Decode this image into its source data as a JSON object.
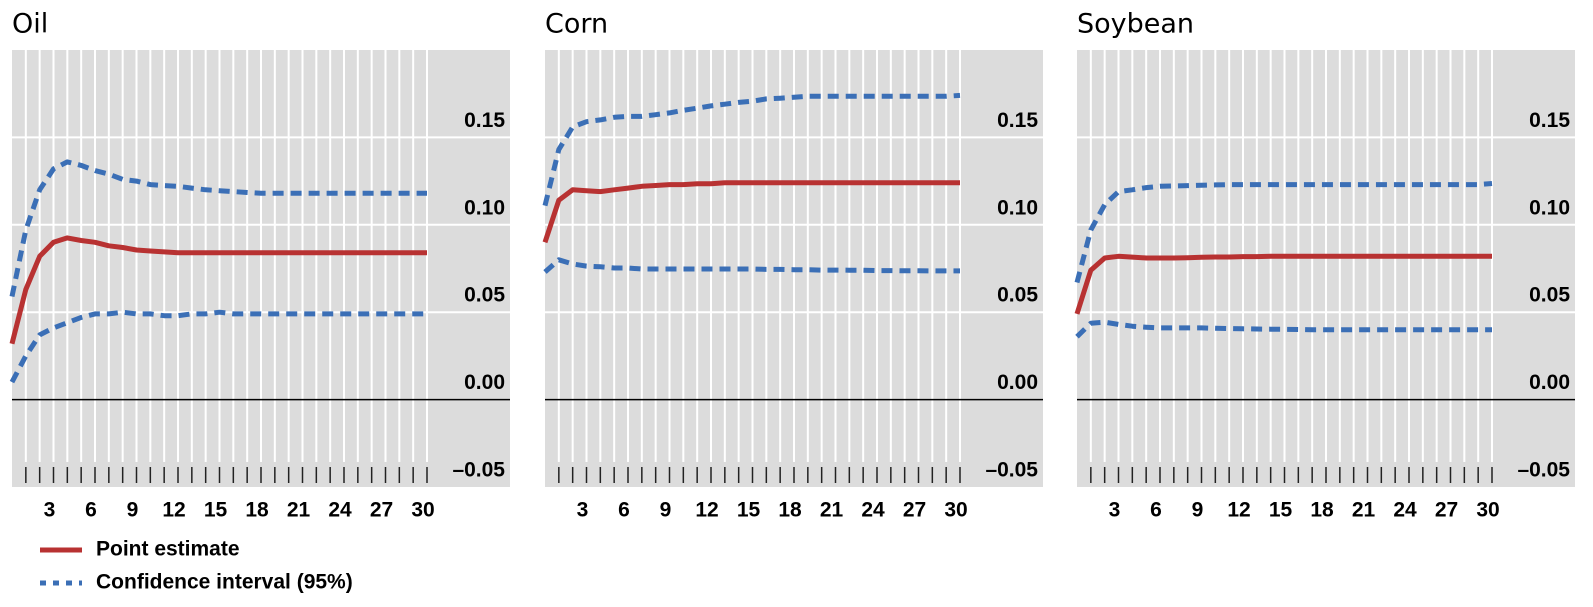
{
  "chart_data": [
    {
      "type": "line",
      "title": "Oil",
      "x": [
        0,
        1,
        2,
        3,
        4,
        5,
        6,
        7,
        8,
        9,
        10,
        11,
        12,
        13,
        14,
        15,
        16,
        17,
        18,
        19,
        20,
        21,
        22,
        23,
        24,
        25,
        26,
        27,
        28,
        29,
        30
      ],
      "series": [
        {
          "name": "Point estimate",
          "color": "#b83232",
          "values": [
            0.032,
            0.063,
            0.082,
            0.09,
            0.0925,
            0.091,
            0.09,
            0.088,
            0.087,
            0.0856,
            0.085,
            0.0845,
            0.084,
            0.084,
            0.084,
            0.084,
            0.084,
            0.084,
            0.084,
            0.084,
            0.084,
            0.084,
            0.084,
            0.084,
            0.084,
            0.084,
            0.084,
            0.084,
            0.084,
            0.084,
            0.084
          ]
        },
        {
          "name": "Confidence interval (95%)",
          "color": "#3b6fb6",
          "dashed": true,
          "upper": [
            0.059,
            0.097,
            0.12,
            0.132,
            0.136,
            0.134,
            0.131,
            0.129,
            0.126,
            0.125,
            0.123,
            0.1224,
            0.122,
            0.121,
            0.12,
            0.1195,
            0.119,
            0.1185,
            0.118,
            0.118,
            0.118,
            0.118,
            0.118,
            0.118,
            0.118,
            0.118,
            0.118,
            0.118,
            0.118,
            0.118,
            0.118
          ],
          "lower": [
            0.01,
            0.025,
            0.037,
            0.041,
            0.044,
            0.047,
            0.049,
            0.049,
            0.05,
            0.049,
            0.049,
            0.048,
            0.048,
            0.049,
            0.049,
            0.05,
            0.049,
            0.049,
            0.049,
            0.049,
            0.049,
            0.049,
            0.049,
            0.049,
            0.049,
            0.049,
            0.049,
            0.049,
            0.049,
            0.049,
            0.049
          ]
        }
      ],
      "xlim": [
        0,
        36
      ],
      "xticks": [
        3,
        6,
        9,
        12,
        15,
        18,
        21,
        24,
        27,
        30
      ],
      "xminorticks": [
        1,
        2,
        3,
        4,
        5,
        6,
        7,
        8,
        9,
        10,
        11,
        12,
        13,
        14,
        15,
        16,
        17,
        18,
        19,
        20,
        21,
        22,
        23,
        24,
        25,
        26,
        27,
        28,
        29,
        30
      ],
      "ylim": [
        -0.05,
        0.2
      ],
      "yticks": [
        {
          "value": -0.05,
          "label": "–0.05"
        },
        {
          "value": 0,
          "label": "0.00"
        },
        0.05,
        {
          "value": 0.1,
          "label": "0.10"
        },
        0.15
      ],
      "grid": true
    },
    {
      "type": "line",
      "title": "Corn",
      "x": [
        0,
        1,
        2,
        3,
        4,
        5,
        6,
        7,
        8,
        9,
        10,
        11,
        12,
        13,
        14,
        15,
        16,
        17,
        18,
        19,
        20,
        21,
        22,
        23,
        24,
        25,
        26,
        27,
        28,
        29,
        30
      ],
      "series": [
        {
          "color": "#b83232",
          "values": [
            0.09,
            0.114,
            0.12,
            0.1195,
            0.119,
            0.12,
            0.121,
            0.122,
            0.1225,
            0.123,
            0.123,
            0.1235,
            0.1235,
            0.124,
            0.124,
            0.124,
            0.124,
            0.124,
            0.124,
            0.124,
            0.124,
            0.124,
            0.124,
            0.124,
            0.124,
            0.124,
            0.124,
            0.124,
            0.124,
            0.124,
            0.124
          ]
        },
        {
          "color": "#3b6fb6",
          "dashed": true,
          "upper": [
            0.111,
            0.143,
            0.156,
            0.159,
            0.16,
            0.1615,
            0.162,
            0.162,
            0.163,
            0.164,
            0.1655,
            0.1667,
            0.168,
            0.169,
            0.17,
            0.1707,
            0.172,
            0.1724,
            0.173,
            0.1735,
            0.1735,
            0.1735,
            0.1735,
            0.1735,
            0.1735,
            0.1735,
            0.1735,
            0.1735,
            0.1735,
            0.1735,
            0.174
          ],
          "lower": [
            0.073,
            0.08,
            0.0776,
            0.0764,
            0.076,
            0.0753,
            0.0753,
            0.0747,
            0.0747,
            0.0747,
            0.0747,
            0.0747,
            0.0747,
            0.0747,
            0.0747,
            0.0747,
            0.0745,
            0.0745,
            0.0743,
            0.0743,
            0.0741,
            0.0741,
            0.074,
            0.074,
            0.0738,
            0.0738,
            0.0737,
            0.0737,
            0.0736,
            0.0736,
            0.0736
          ]
        }
      ],
      "xlim": [
        0,
        36
      ],
      "xticks": [
        3,
        6,
        9,
        12,
        15,
        18,
        21,
        24,
        27,
        30
      ],
      "xminorticks": [
        1,
        2,
        3,
        4,
        5,
        6,
        7,
        8,
        9,
        10,
        11,
        12,
        13,
        14,
        15,
        16,
        17,
        18,
        19,
        20,
        21,
        22,
        23,
        24,
        25,
        26,
        27,
        28,
        29,
        30
      ],
      "ylim": [
        -0.05,
        0.2
      ],
      "yticks": [
        {
          "value": -0.05,
          "label": "–0.05"
        },
        {
          "value": 0,
          "label": "0.00"
        },
        0.05,
        {
          "value": 0.1,
          "label": "0.10"
        },
        0.15
      ],
      "grid": true
    },
    {
      "type": "line",
      "title": "Soybean",
      "x": [
        0,
        1,
        2,
        3,
        4,
        5,
        6,
        7,
        8,
        9,
        10,
        11,
        12,
        13,
        14,
        15,
        16,
        17,
        18,
        19,
        20,
        21,
        22,
        23,
        24,
        25,
        26,
        27,
        28,
        29,
        30
      ],
      "series": [
        {
          "color": "#b83232",
          "values": [
            0.049,
            0.074,
            0.081,
            0.082,
            0.0815,
            0.081,
            0.081,
            0.081,
            0.0812,
            0.0814,
            0.0816,
            0.0816,
            0.0818,
            0.0818,
            0.082,
            0.082,
            0.082,
            0.082,
            0.082,
            0.082,
            0.082,
            0.082,
            0.082,
            0.082,
            0.082,
            0.082,
            0.082,
            0.082,
            0.082,
            0.082,
            0.082
          ]
        },
        {
          "color": "#3b6fb6",
          "dashed": true,
          "upper": [
            0.067,
            0.097,
            0.1115,
            0.119,
            0.12,
            0.1213,
            0.122,
            0.1222,
            0.1224,
            0.1226,
            0.1228,
            0.123,
            0.123,
            0.123,
            0.123,
            0.123,
            0.123,
            0.123,
            0.123,
            0.123,
            0.123,
            0.123,
            0.123,
            0.123,
            0.123,
            0.123,
            0.123,
            0.123,
            0.123,
            0.123,
            0.1236
          ],
          "lower": [
            0.036,
            0.0437,
            0.0443,
            0.043,
            0.042,
            0.0414,
            0.041,
            0.041,
            0.041,
            0.041,
            0.0408,
            0.0406,
            0.0405,
            0.0404,
            0.0403,
            0.0402,
            0.0401,
            0.04,
            0.04,
            0.04,
            0.04,
            0.04,
            0.04,
            0.04,
            0.04,
            0.04,
            0.04,
            0.04,
            0.04,
            0.04,
            0.04
          ]
        }
      ],
      "xlim": [
        0,
        36
      ],
      "xticks": [
        3,
        6,
        9,
        12,
        15,
        18,
        21,
        24,
        27,
        30
      ],
      "xminorticks": [
        1,
        2,
        3,
        4,
        5,
        6,
        7,
        8,
        9,
        10,
        11,
        12,
        13,
        14,
        15,
        16,
        17,
        18,
        19,
        20,
        21,
        22,
        23,
        24,
        25,
        26,
        27,
        28,
        29,
        30
      ],
      "ylim": [
        -0.05,
        0.2
      ],
      "yticks": [
        {
          "value": -0.05,
          "label": "–0.05"
        },
        {
          "value": 0,
          "label": "0.00"
        },
        0.05,
        {
          "value": 0.1,
          "label": "0.10"
        },
        0.15
      ],
      "grid": true
    }
  ]
}
